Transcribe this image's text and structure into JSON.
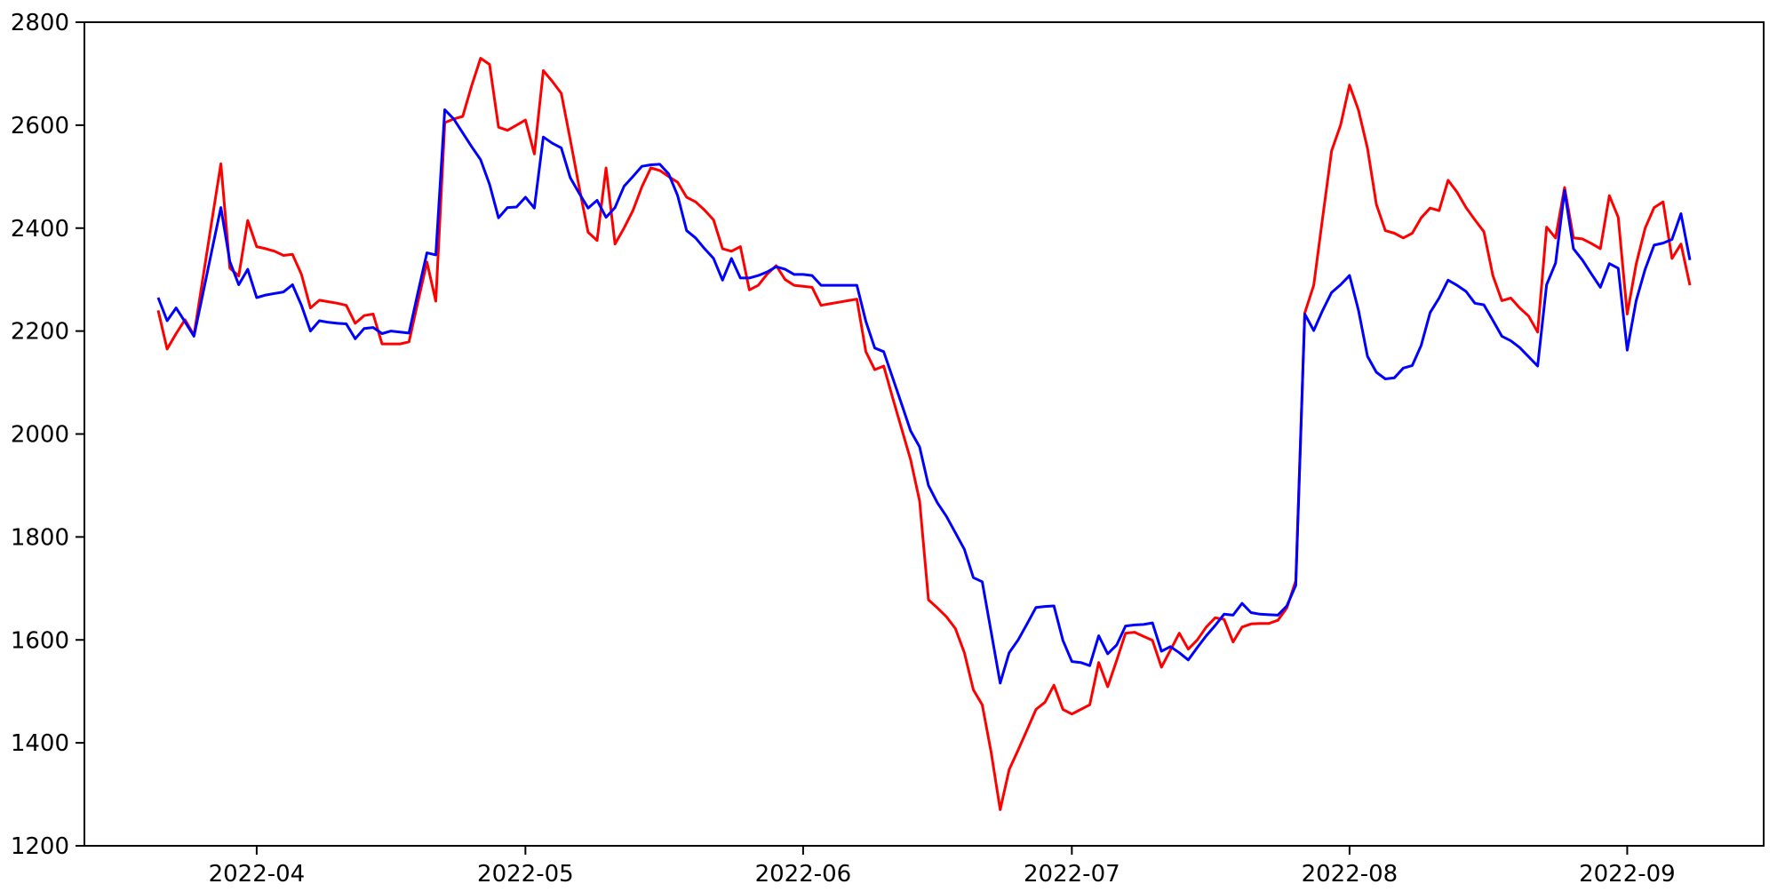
{
  "chart_data": {
    "type": "line",
    "title": "",
    "xlabel": "",
    "ylabel": "",
    "background": "#ffffff",
    "grid": false,
    "legend": null,
    "axis_color": "#000000",
    "x_start_date": "2022-03-21",
    "x_end_date": "2022-09-08",
    "x_frequency": "daily",
    "ylim": [
      1200,
      2800
    ],
    "y_ticks": [
      1200,
      1400,
      1600,
      1800,
      2000,
      2200,
      2400,
      2600,
      2800
    ],
    "x_ticks": [
      {
        "label": "2022-04",
        "index": 11
      },
      {
        "label": "2022-05",
        "index": 41
      },
      {
        "label": "2022-06",
        "index": 72
      },
      {
        "label": "2022-07",
        "index": 102
      },
      {
        "label": "2022-08",
        "index": 133
      },
      {
        "label": "2022-09",
        "index": 164
      }
    ],
    "series": [
      {
        "name": "red-series",
        "color": "#ff0000",
        "values": [
          2240,
          2165,
          2195,
          2222,
          2192,
          2303,
          2415,
          2525,
          2322,
          2307,
          2415,
          2364,
          2360,
          2355,
          2347,
          2349,
          2310,
          2245,
          2260,
          2257,
          2254,
          2250,
          2215,
          2230,
          2233,
          2175,
          2175,
          2175,
          2179,
          2257,
          2334,
          2258,
          2605,
          2612,
          2617,
          2677,
          2730,
          2718,
          2596,
          2590,
          2600,
          2610,
          2544,
          2706,
          2685,
          2662,
          2572,
          2480,
          2392,
          2376,
          2517,
          2369,
          2400,
          2434,
          2480,
          2517,
          2512,
          2500,
          2489,
          2460,
          2451,
          2435,
          2416,
          2360,
          2355,
          2364,
          2280,
          2289,
          2311,
          2327,
          2300,
          2289,
          2287,
          2285,
          2250,
          2253,
          2256,
          2259,
          2262,
          2160,
          2125,
          2132,
          2070,
          2010,
          1950,
          1870,
          1678,
          1662,
          1645,
          1622,
          1575,
          1503,
          1474,
          1381,
          1270,
          1348,
          1386,
          1425,
          1465,
          1479,
          1512,
          1465,
          1456,
          1465,
          1474,
          1556,
          1509,
          1560,
          1613,
          1615,
          1607,
          1599,
          1547,
          1580,
          1613,
          1582,
          1600,
          1625,
          1643,
          1640,
          1596,
          1625,
          1631,
          1632,
          1632,
          1638,
          1662,
          1715,
          2235,
          2289,
          2420,
          2550,
          2600,
          2678,
          2629,
          2555,
          2446,
          2395,
          2390,
          2381,
          2390,
          2420,
          2439,
          2434,
          2493,
          2470,
          2440,
          2416,
          2393,
          2308,
          2259,
          2264,
          2245,
          2229,
          2198,
          2402,
          2381,
          2479,
          2381,
          2379,
          2370,
          2360,
          2463,
          2421,
          2233,
          2330,
          2400,
          2440,
          2451,
          2341,
          2369,
          2289
        ]
      },
      {
        "name": "blue-series",
        "color": "#0000ff",
        "values": [
          2265,
          2220,
          2245,
          2218,
          2190,
          2273,
          2357,
          2440,
          2335,
          2290,
          2320,
          2265,
          2270,
          2273,
          2276,
          2290,
          2250,
          2200,
          2220,
          2217,
          2215,
          2214,
          2185,
          2205,
          2207,
          2195,
          2200,
          2198,
          2196,
          2275,
          2352,
          2348,
          2630,
          2612,
          2585,
          2558,
          2533,
          2485,
          2420,
          2440,
          2441,
          2460,
          2439,
          2577,
          2565,
          2556,
          2498,
          2468,
          2439,
          2454,
          2421,
          2440,
          2481,
          2500,
          2520,
          2523,
          2524,
          2505,
          2463,
          2395,
          2381,
          2360,
          2341,
          2299,
          2341,
          2303,
          2303,
          2308,
          2315,
          2325,
          2320,
          2310,
          2310,
          2308,
          2289,
          2289,
          2289,
          2289,
          2289,
          2219,
          2167,
          2160,
          2109,
          2058,
          2006,
          1975,
          1900,
          1866,
          1840,
          1808,
          1776,
          1721,
          1713,
          1615,
          1516,
          1575,
          1600,
          1631,
          1663,
          1665,
          1666,
          1599,
          1558,
          1556,
          1550,
          1608,
          1573,
          1590,
          1627,
          1629,
          1630,
          1633,
          1578,
          1587,
          1575,
          1561,
          1585,
          1608,
          1628,
          1650,
          1648,
          1671,
          1653,
          1650,
          1649,
          1648,
          1666,
          1706,
          2233,
          2201,
          2240,
          2275,
          2290,
          2308,
          2240,
          2151,
          2120,
          2107,
          2109,
          2128,
          2133,
          2172,
          2236,
          2264,
          2299,
          2289,
          2277,
          2254,
          2251,
          2221,
          2190,
          2181,
          2168,
          2150,
          2132,
          2290,
          2332,
          2473,
          2360,
          2338,
          2311,
          2285,
          2331,
          2322,
          2163,
          2259,
          2320,
          2367,
          2371,
          2378,
          2428,
          2338
        ]
      }
    ]
  }
}
